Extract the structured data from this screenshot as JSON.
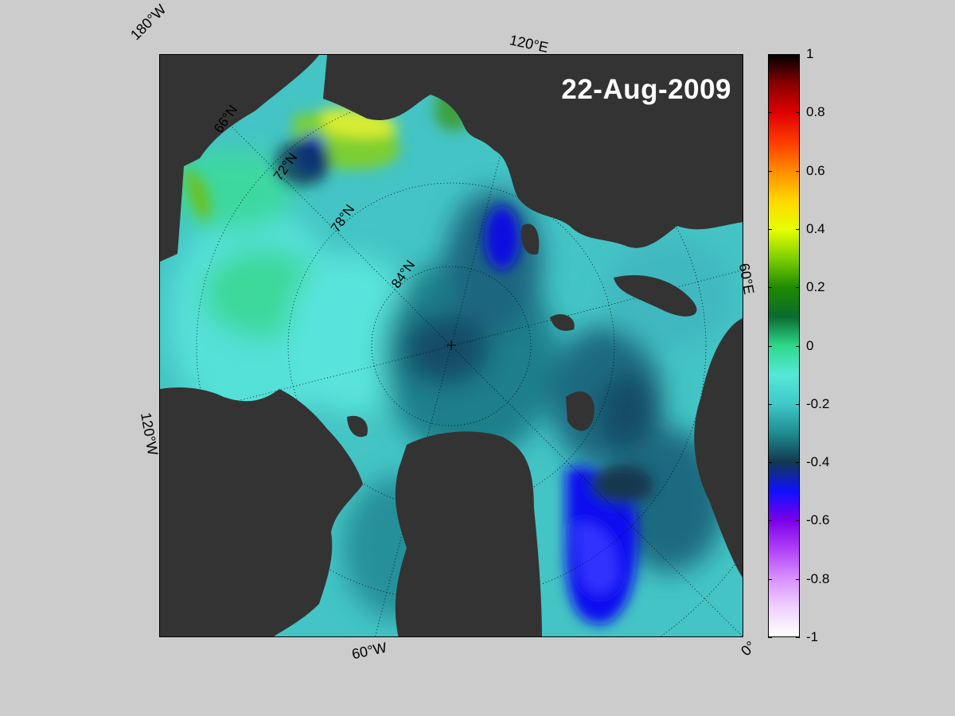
{
  "map": {
    "date_label": "22-Aug-2009",
    "projection": "north-polar-stereographic",
    "edge_labels": {
      "lon_180w": "180°W",
      "lon_120e": "120°E",
      "lon_60e": "60°E",
      "lon_0": "0°",
      "lon_120w": "120°W",
      "lon_60w": "60°W"
    },
    "lat_labels": {
      "lat_66n": "66°N",
      "lat_72n": "72°N",
      "lat_78n": "78°N",
      "lat_84n": "84°N"
    },
    "colors": {
      "land": "#333333",
      "background": "#cccccc",
      "outside": "#8a8a8a"
    }
  },
  "colorbar": {
    "min": -1,
    "max": 1,
    "ticks": [
      "1",
      "0.8",
      "0.6",
      "0.4",
      "0.2",
      "0",
      "-0.2",
      "-0.4",
      "-0.6",
      "-0.8",
      "-1"
    ],
    "stops": [
      {
        "v": 1.0,
        "c": "#000000"
      },
      {
        "v": 0.9,
        "c": "#8b0000"
      },
      {
        "v": 0.8,
        "c": "#e00000"
      },
      {
        "v": 0.7,
        "c": "#ff3b00"
      },
      {
        "v": 0.6,
        "c": "#ff8c00"
      },
      {
        "v": 0.5,
        "c": "#ffd700"
      },
      {
        "v": 0.4,
        "c": "#e6ff00"
      },
      {
        "v": 0.3,
        "c": "#7ecf00"
      },
      {
        "v": 0.2,
        "c": "#1f8a00"
      },
      {
        "v": 0.1,
        "c": "#0a6b30"
      },
      {
        "v": 0.0,
        "c": "#2ed88a"
      },
      {
        "v": -0.1,
        "c": "#55e8d8"
      },
      {
        "v": -0.2,
        "c": "#40c8c8"
      },
      {
        "v": -0.3,
        "c": "#1f8c90"
      },
      {
        "v": -0.4,
        "c": "#123850"
      },
      {
        "v": -0.5,
        "c": "#1010ff"
      },
      {
        "v": -0.6,
        "c": "#7a00e8"
      },
      {
        "v": -0.7,
        "c": "#b040f8"
      },
      {
        "v": -0.8,
        "c": "#d890ff"
      },
      {
        "v": -0.9,
        "c": "#f0d0ff"
      },
      {
        "v": -1.0,
        "c": "#ffffff"
      }
    ]
  }
}
